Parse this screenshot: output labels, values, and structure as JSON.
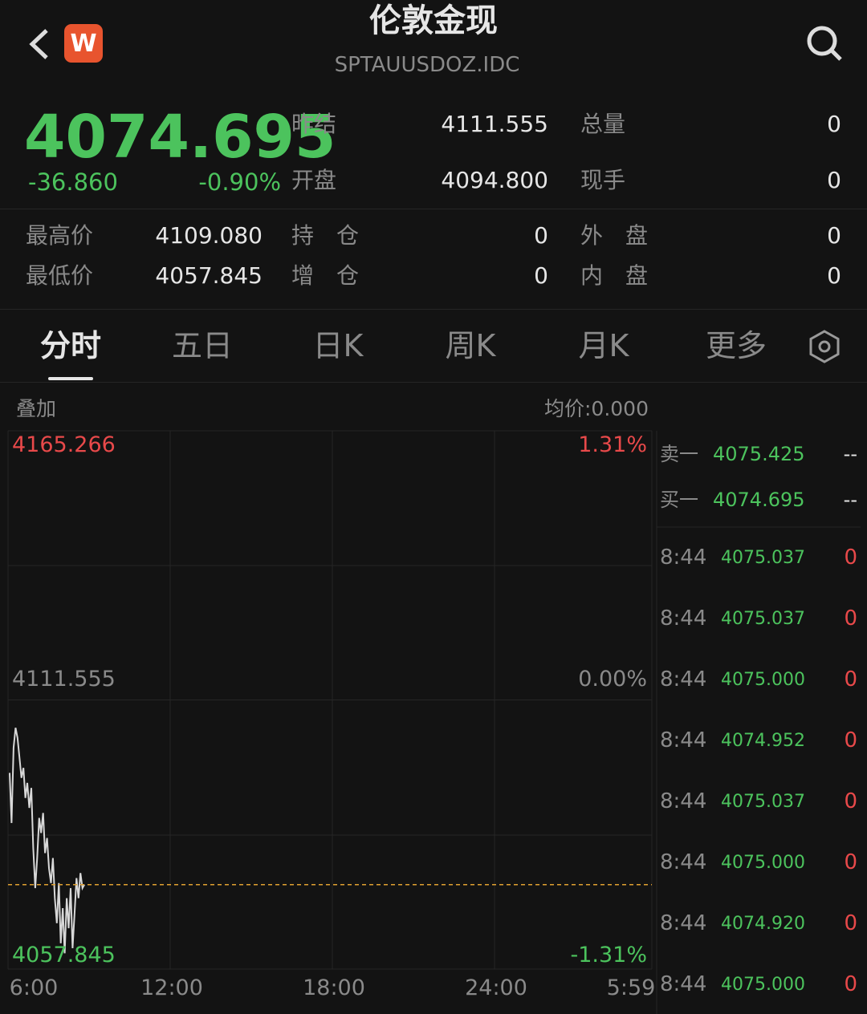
{
  "header": {
    "title": "伦敦金现",
    "code": "SPTAUUSDOZ.IDC",
    "badge": "W"
  },
  "quote": {
    "price": 4074.695,
    "change": "-36.860",
    "change_pct": "-0.90%",
    "top_stats": [
      {
        "label": "昨结",
        "value": "4111.555"
      },
      {
        "label": "总量",
        "value": "0"
      },
      {
        "label": "开盘",
        "value": "4094.800"
      },
      {
        "label": "现手",
        "value": "0"
      }
    ],
    "rows": [
      [
        {
          "label": "最高价",
          "value": "4109.080"
        },
        {
          "label": "持　仓",
          "value": "0"
        },
        {
          "label": "外　盘",
          "value": "0"
        }
      ],
      [
        {
          "label": "最低价",
          "value": "4057.845"
        },
        {
          "label": "增　仓",
          "value": "0"
        },
        {
          "label": "内　盘",
          "value": "0"
        }
      ]
    ]
  },
  "tabs": [
    "分时",
    "五日",
    "日K",
    "周K",
    "月K",
    "更多"
  ],
  "chart": {
    "overlay": "叠加",
    "avg_label": "均价:0.000",
    "ylim": [
      4057.845,
      4165.266
    ],
    "yticks": [
      4057.845,
      4111.555,
      4165.266
    ],
    "pct_labels": [
      "-1.31%",
      "0.00%",
      "1.31%"
    ],
    "xticks": [
      "6:00",
      "12:00",
      "18:00",
      "24:00",
      "5:59"
    ],
    "prices": [
      4097,
      4087,
      4102,
      4106,
      4104,
      4100,
      4096,
      4098,
      4092,
      4095,
      4090,
      4094,
      4082,
      4074,
      4080,
      4088,
      4085,
      4089,
      4081,
      4084,
      4078,
      4075,
      4080,
      4072,
      4067,
      4075,
      4063,
      4070,
      4061,
      4072,
      4066,
      4074,
      4062,
      4069,
      4076,
      4072,
      4077,
      4074,
      4074.695
    ]
  },
  "order_book": [
    {
      "side": "卖一",
      "price": "4075.425",
      "volume": "--"
    },
    {
      "side": "买一",
      "price": "4074.695",
      "volume": "--"
    }
  ],
  "ticks": [
    {
      "time": "8:44",
      "price": "4075.037",
      "volume": "0"
    },
    {
      "time": "8:44",
      "price": "4075.037",
      "volume": "0"
    },
    {
      "time": "8:44",
      "price": "4075.000",
      "volume": "0"
    },
    {
      "time": "8:44",
      "price": "4074.952",
      "volume": "0"
    },
    {
      "time": "8:44",
      "price": "4075.037",
      "volume": "0"
    },
    {
      "time": "8:44",
      "price": "4075.000",
      "volume": "0"
    },
    {
      "time": "8:44",
      "price": "4074.920",
      "volume": "0"
    },
    {
      "time": "8:44",
      "price": "4075.000",
      "volume": "0"
    }
  ]
}
